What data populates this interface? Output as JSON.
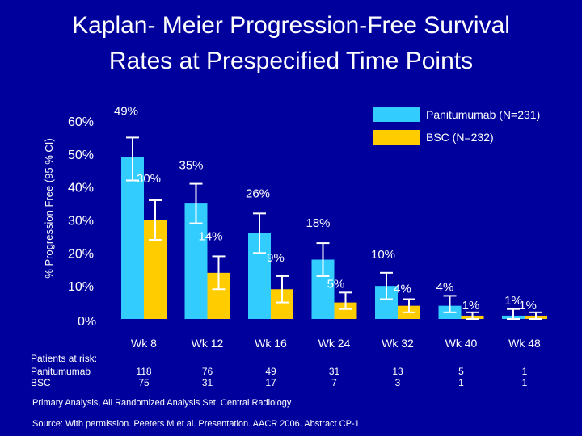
{
  "title_line1": "Kaplan- Meier Progression-Free Survival",
  "title_line2": "Rates at Prespecified Time Points",
  "colors": {
    "background": "#00009c",
    "panitumumab": "#33ccff",
    "bsc": "#ffcc00",
    "error_bar": "#ffffff"
  },
  "chart_data": {
    "type": "bar",
    "ylabel": "% Progression Free (95 % CI)",
    "ylim": [
      0,
      0.6
    ],
    "yticks": [
      "0%",
      "10%",
      "20%",
      "30%",
      "40%",
      "50%",
      "60%"
    ],
    "categories": [
      "Wk 8",
      "Wk 12",
      "Wk 16",
      "Wk 24",
      "Wk 32",
      "Wk 40",
      "Wk 48"
    ],
    "series": [
      {
        "name": "Panitumumab (N=231)",
        "values": [
          0.49,
          0.35,
          0.26,
          0.18,
          0.1,
          0.04,
          0.01
        ],
        "labels": [
          "49%",
          "35%",
          "26%",
          "18%",
          "10%",
          "4%",
          "1%"
        ],
        "ci_low": [
          0.42,
          0.29,
          0.2,
          0.13,
          0.06,
          0.02,
          0.0
        ],
        "ci_high": [
          0.55,
          0.41,
          0.32,
          0.23,
          0.14,
          0.07,
          0.03
        ]
      },
      {
        "name": "BSC (N=232)",
        "values": [
          0.3,
          0.14,
          0.09,
          0.05,
          0.04,
          0.01,
          0.01
        ],
        "labels": [
          "30%",
          "14%",
          "9%",
          "5%",
          "4%",
          "1%",
          "1%"
        ],
        "ci_low": [
          0.24,
          0.09,
          0.05,
          0.03,
          0.02,
          0.0,
          0.0
        ],
        "ci_high": [
          0.36,
          0.19,
          0.13,
          0.08,
          0.06,
          0.02,
          0.02
        ]
      }
    ],
    "legend_position": "top-right",
    "grid": false
  },
  "risk": {
    "header": "Patients at risk:",
    "rows": [
      "Panitumumab",
      "BSC"
    ],
    "panitumumab": [
      "118",
      "76",
      "49",
      "31",
      "13",
      "5",
      "1"
    ],
    "bsc": [
      "75",
      "31",
      "17",
      "7",
      "3",
      "1",
      "1"
    ]
  },
  "footnotes": {
    "analysis": "Primary Analysis, All  Randomized Analysis Set, Central Radiology",
    "source": "Source: With permission. Peeters M et al. Presentation. AACR 2006. Abstract CP-1"
  }
}
